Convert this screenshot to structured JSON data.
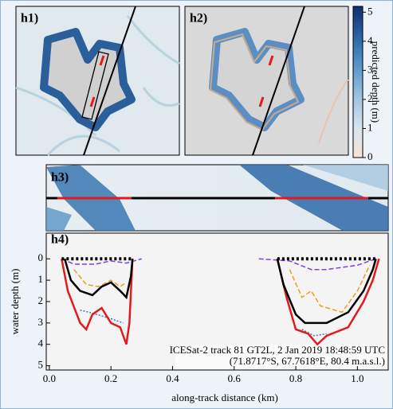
{
  "panels": [
    {
      "label": "h1)"
    },
    {
      "label": "h2)"
    },
    {
      "label": "h3)"
    }
  ],
  "colorbar": {
    "label": "predicted depth (m)",
    "lim": [
      0,
      5.2
    ],
    "ticks": [
      0,
      1,
      2,
      3,
      4,
      5
    ],
    "colors": [
      "#f7e3d7",
      "#d7e3ee",
      "#9fc2de",
      "#5b96c8",
      "#2c63a6",
      "#102c6e"
    ]
  },
  "chart_data": {
    "type": "line",
    "panel_label": "h4)",
    "xlabel": "along-track distance (km)",
    "ylabel": "water depth (m)",
    "annotations": [
      "ICESat-2 track 81 GT2L, 2 Jan 2019 18:48:59 UTC",
      "(71.8717°S, 67.7618°E, 80.4 m.a.s.l.)"
    ],
    "xlim": [
      -0.01,
      1.1
    ],
    "ylim": [
      5.2,
      -1.2
    ],
    "invert_y": true,
    "xticks": [
      {
        "value": 0,
        "label": "0.0"
      },
      {
        "value": 0.2,
        "label": "0.2"
      },
      {
        "value": 0.4,
        "label": "0.4"
      },
      {
        "value": 0.6,
        "label": "0.6"
      },
      {
        "value": 0.8,
        "label": "0.8"
      },
      {
        "value": 1,
        "label": "1.0"
      }
    ],
    "yticks": [
      0,
      1,
      2,
      3,
      4,
      5
    ],
    "series": [
      {
        "color": "#7b3fe4",
        "dash": "dashed",
        "x": [
          0.04,
          0.08,
          0.15,
          0.2,
          0.25,
          0.3,
          0.5,
          0.68,
          0.78,
          0.85,
          0.9,
          1.0,
          1.06
        ],
        "values": [
          0,
          0.25,
          0.25,
          0.1,
          0.2,
          0,
          null,
          0,
          0.1,
          0.5,
          0.5,
          0.3,
          0
        ]
      },
      {
        "color": "#e8a11a",
        "dash": "dashed",
        "x": [
          0.08,
          0.12,
          0.16,
          0.2,
          0.23,
          0.25,
          0.5,
          0.78,
          0.82,
          0.85,
          0.88,
          0.95,
          1.0,
          1.04
        ],
        "values": [
          0.5,
          1.2,
          1.3,
          1.0,
          1.3,
          1.1,
          null,
          0.5,
          1.8,
          1.5,
          2.2,
          2.5,
          1.5,
          0.3
        ]
      },
      {
        "color": "#3a78b8",
        "dash": "dotted",
        "x": [
          0.1,
          0.13,
          0.2,
          0.24,
          0.5,
          0.82,
          0.86,
          0.9
        ],
        "values": [
          2.4,
          2.5,
          2.8,
          3.0,
          null,
          3.3,
          3.6,
          3.5
        ]
      },
      {
        "color": "#e31a1c",
        "dash": "solid",
        "x": [
          0.04,
          0.06,
          0.1,
          0.12,
          0.14,
          0.17,
          0.2,
          0.23,
          0.25,
          0.26,
          0.27,
          0.5,
          0.74,
          0.77,
          0.8,
          0.84,
          0.87,
          0.9,
          0.97,
          1.02,
          1.05,
          1.07
        ],
        "values": [
          0,
          1.5,
          3.0,
          3.3,
          2.6,
          2.3,
          3.0,
          3.2,
          4.0,
          3.0,
          0,
          null,
          0,
          1.8,
          3.3,
          3.5,
          4.0,
          3.6,
          3.2,
          2.0,
          1.0,
          0
        ]
      },
      {
        "color": "#000000",
        "dash": "solid",
        "x": [
          0.05,
          0.07,
          0.1,
          0.14,
          0.17,
          0.2,
          0.23,
          0.25,
          0.265,
          0.27,
          0.5,
          0.74,
          0.76,
          0.8,
          0.83,
          0.9,
          0.97,
          1.02,
          1.05,
          1.06
        ],
        "values": [
          0,
          1.0,
          1.5,
          1.7,
          1.3,
          1.1,
          1.5,
          1.8,
          0.8,
          0,
          null,
          0,
          1.2,
          2.6,
          3.0,
          3.0,
          2.5,
          1.5,
          0.5,
          0
        ]
      },
      {
        "color": "#000000",
        "dash": "surface",
        "x": [
          0.04,
          0.27,
          0.5,
          0.74,
          1.06
        ],
        "values": [
          0,
          0,
          null,
          0,
          0
        ]
      }
    ]
  }
}
